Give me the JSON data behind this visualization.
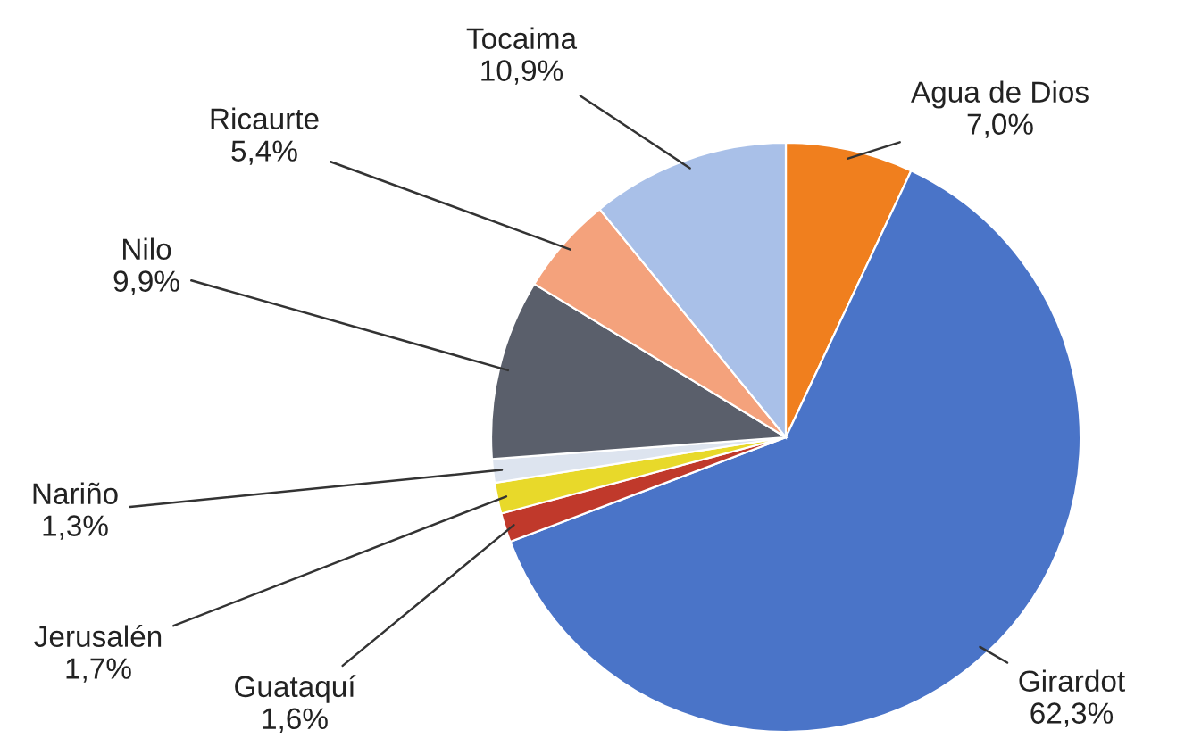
{
  "chart_data": {
    "type": "pie",
    "categories": [
      "Agua de Dios",
      "Girardot",
      "Guataquí",
      "Jerusalén",
      "Nariño",
      "Nilo",
      "Ricaurte",
      "Tocaima"
    ],
    "values": [
      7.0,
      62.3,
      1.6,
      1.7,
      1.3,
      9.9,
      5.4,
      10.9
    ],
    "value_labels": [
      "7,0%",
      "62,3%",
      "1,6%",
      "1,7%",
      "1,3%",
      "9,9%",
      "5,4%",
      "10,9%"
    ],
    "colors": [
      "#f07f1e",
      "#4a74c8",
      "#c0392b",
      "#e8d92a",
      "#dde4ef",
      "#5a5f6b",
      "#f4a27c",
      "#a9c0e8"
    ],
    "legend": false
  }
}
